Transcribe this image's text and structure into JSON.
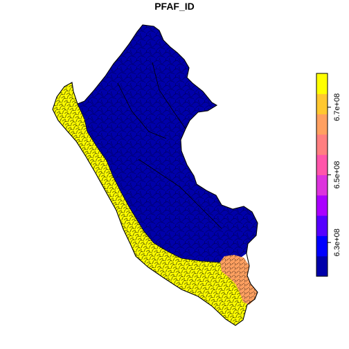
{
  "title": "PFAF_ID",
  "legend": {
    "colors": [
      "#0000AA",
      "#0000FF",
      "#5500FF",
      "#AA00FF",
      "#DD33DD",
      "#FF55AA",
      "#FF7F80",
      "#FFA060",
      "#FFC82F",
      "#FFFF00"
    ],
    "tick_labels": [
      "6.3e+08",
      "6.5e+08",
      "6.7e+08"
    ],
    "range": [
      620000000,
      680000000
    ],
    "tick_values": [
      630000000,
      650000000,
      670000000
    ]
  },
  "map": {
    "region_colors": {
      "amazon_basin": "#0000AA",
      "pacific_coast": "#FFFF00",
      "titicaca_basin": "#FFA060"
    },
    "outline_color": "#000000"
  }
}
